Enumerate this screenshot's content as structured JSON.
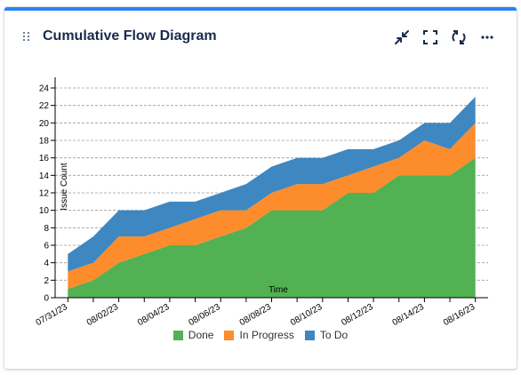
{
  "card": {
    "title": "Cumulative Flow Diagram"
  },
  "toolbar": {
    "minimize_icon": "collapse-arrows-icon",
    "fullscreen_icon": "fullscreen-icon",
    "refresh_icon": "refresh-icon",
    "more_icon": "more-horizontal-icon"
  },
  "colors": {
    "accent": "#2684ff",
    "done": "#52b152",
    "in_progress": "#fd8c2c",
    "to_do": "#3f87c0"
  },
  "chart_data": {
    "type": "area",
    "stacked": true,
    "title": "",
    "xlabel": "Time",
    "ylabel": "Issue Count",
    "ylim": [
      0,
      24
    ],
    "yticks": [
      0,
      2,
      4,
      6,
      8,
      10,
      12,
      14,
      16,
      18,
      20,
      22,
      24
    ],
    "grid": true,
    "legend_position": "bottom",
    "x": [
      "07/31/23",
      "08/01/23",
      "08/02/23",
      "08/03/23",
      "08/04/23",
      "08/05/23",
      "08/06/23",
      "08/07/23",
      "08/08/23",
      "08/09/23",
      "08/10/23",
      "08/11/23",
      "08/12/23",
      "08/13/23",
      "08/14/23",
      "08/15/23",
      "08/16/23"
    ],
    "xtick_labels": [
      "07/31/23",
      "08/02/23",
      "08/04/23",
      "08/06/23",
      "08/08/23",
      "08/10/23",
      "08/12/23",
      "08/14/23",
      "08/16/23"
    ],
    "series": [
      {
        "name": "Done",
        "values": [
          1,
          2,
          4,
          5,
          6,
          6,
          7,
          8,
          10,
          10,
          10,
          12,
          12,
          14,
          14,
          14,
          16
        ]
      },
      {
        "name": "In Progress",
        "values": [
          2,
          2,
          3,
          2,
          2,
          3,
          3,
          2,
          2,
          3,
          3,
          2,
          3,
          2,
          4,
          3,
          4
        ]
      },
      {
        "name": "To Do",
        "values": [
          2,
          3,
          3,
          3,
          3,
          2,
          2,
          3,
          3,
          3,
          3,
          3,
          2,
          2,
          2,
          3,
          3
        ]
      }
    ]
  }
}
